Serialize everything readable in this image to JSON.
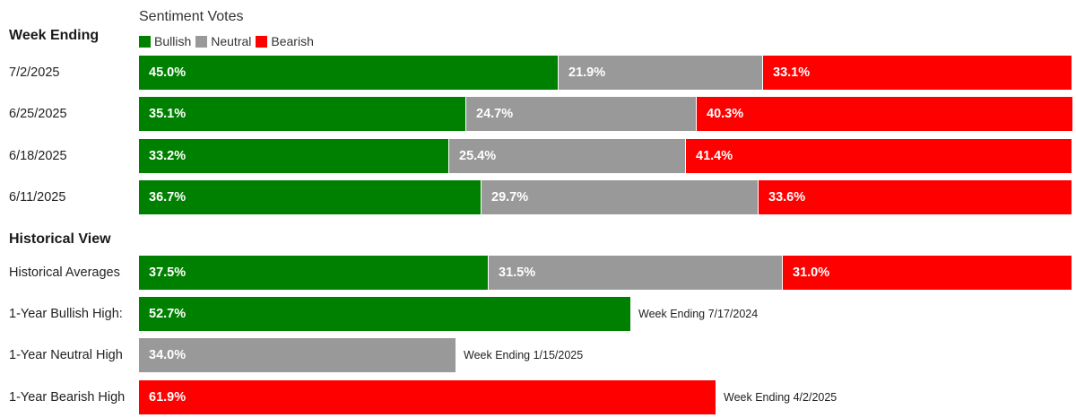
{
  "colors": {
    "bullish": "#008000",
    "neutral": "#999999",
    "bearish": "#ff0000"
  },
  "chart_data": {
    "type": "bar",
    "orientation": "horizontal",
    "stacked": true,
    "title": "Sentiment Votes",
    "legend": [
      {
        "key": "bullish",
        "name": "Bullish"
      },
      {
        "key": "neutral",
        "name": "Neutral"
      },
      {
        "key": "bearish",
        "name": "Bearish"
      }
    ],
    "sections": [
      {
        "heading": "Week Ending",
        "rows": [
          {
            "label": "7/2/2025",
            "values": {
              "bullish": 45.0,
              "neutral": 21.9,
              "bearish": 33.1
            },
            "labels": {
              "bullish": "45.0%",
              "neutral": "21.9%",
              "bearish": "33.1%"
            }
          },
          {
            "label": "6/25/2025",
            "values": {
              "bullish": 35.1,
              "neutral": 24.7,
              "bearish": 40.3
            },
            "labels": {
              "bullish": "35.1%",
              "neutral": "24.7%",
              "bearish": "40.3%"
            }
          },
          {
            "label": "6/18/2025",
            "values": {
              "bullish": 33.2,
              "neutral": 25.4,
              "bearish": 41.4
            },
            "labels": {
              "bullish": "33.2%",
              "neutral": "25.4%",
              "bearish": "41.4%"
            }
          },
          {
            "label": "6/11/2025",
            "values": {
              "bullish": 36.7,
              "neutral": 29.7,
              "bearish": 33.6
            },
            "labels": {
              "bullish": "36.7%",
              "neutral": "29.7%",
              "bearish": "33.6%"
            }
          }
        ]
      },
      {
        "heading": "Historical View",
        "rows": [
          {
            "label": "Historical Averages",
            "values": {
              "bullish": 37.5,
              "neutral": 31.5,
              "bearish": 31.0
            },
            "labels": {
              "bullish": "37.5%",
              "neutral": "31.5%",
              "bearish": "31.0%"
            }
          },
          {
            "label": "1-Year Bullish High:",
            "values": {
              "bullish": 52.7
            },
            "labels": {
              "bullish": "52.7%"
            },
            "note": "Week Ending 7/17/2024"
          },
          {
            "label": "1-Year Neutral High",
            "values": {
              "neutral": 34.0
            },
            "labels": {
              "neutral": "34.0%"
            },
            "note": "Week Ending 1/15/2025"
          },
          {
            "label": "1-Year Bearish High",
            "values": {
              "bearish": 61.9
            },
            "labels": {
              "bearish": "61.9%"
            },
            "note": "Week Ending 4/2/2025"
          }
        ]
      }
    ]
  }
}
